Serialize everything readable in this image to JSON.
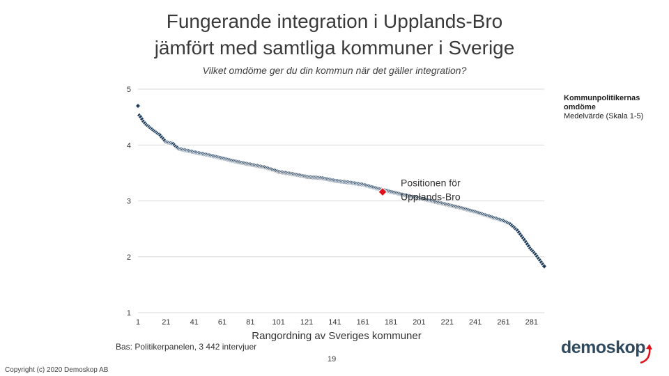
{
  "header": {
    "title_line1": "Fungerande integration i Upplands-Bro",
    "title_line2": "jämfört med samtliga kommuner i Sverige",
    "subtitle": "Vilket omdöme ger du din kommun när det gäller integration?"
  },
  "legend": {
    "label": "Kommunpolitikernas omdöme",
    "sublabel": "Medelvärde (Skala 1-5)"
  },
  "footer": {
    "bas": "Bas: Politikerpanelen, 3 442 intervjuer",
    "page_number": "19",
    "copyright": "Copyright (c) 2020 Demoskop AB",
    "logo": "demoskop"
  },
  "colors": {
    "series": "#1f3d5a",
    "highlight": "#e0101a",
    "grid": "#d9d9d9"
  },
  "chart_data": {
    "type": "scatter",
    "xlabel": "Rangordning av Sveriges kommuner",
    "ylabel": "",
    "xlim": [
      1,
      290
    ],
    "ylim": [
      1,
      5
    ],
    "xticks": [
      1,
      21,
      41,
      61,
      81,
      101,
      121,
      141,
      161,
      181,
      201,
      221,
      241,
      261,
      281
    ],
    "yticks": [
      1,
      2,
      3,
      4,
      5
    ],
    "ytick_labels": [
      "1",
      "2",
      "3",
      "4",
      "5"
    ],
    "series": [
      {
        "name": "Kommunpolitikernas omdöme",
        "rank_range": [
          1,
          290
        ],
        "anchors": [
          [
            1,
            4.7
          ],
          [
            2,
            4.53
          ],
          [
            3,
            4.5
          ],
          [
            5,
            4.42
          ],
          [
            7,
            4.36
          ],
          [
            10,
            4.3
          ],
          [
            13,
            4.24
          ],
          [
            17,
            4.17
          ],
          [
            21,
            4.05
          ],
          [
            26,
            4.02
          ],
          [
            30,
            3.93
          ],
          [
            41,
            3.87
          ],
          [
            51,
            3.82
          ],
          [
            61,
            3.76
          ],
          [
            71,
            3.7
          ],
          [
            81,
            3.65
          ],
          [
            91,
            3.6
          ],
          [
            101,
            3.52
          ],
          [
            111,
            3.48
          ],
          [
            121,
            3.43
          ],
          [
            131,
            3.41
          ],
          [
            141,
            3.36
          ],
          [
            151,
            3.33
          ],
          [
            161,
            3.29
          ],
          [
            171,
            3.22
          ],
          [
            181,
            3.16
          ],
          [
            191,
            3.1
          ],
          [
            201,
            3.05
          ],
          [
            211,
            2.99
          ],
          [
            221,
            2.93
          ],
          [
            231,
            2.87
          ],
          [
            241,
            2.8
          ],
          [
            251,
            2.72
          ],
          [
            261,
            2.64
          ],
          [
            266,
            2.58
          ],
          [
            271,
            2.47
          ],
          [
            276,
            2.3
          ],
          [
            280,
            2.15
          ],
          [
            284,
            2.04
          ],
          [
            286,
            1.97
          ],
          [
            288,
            1.9
          ],
          [
            290,
            1.83
          ]
        ]
      }
    ],
    "highlight": {
      "label": "Positionen för Upplands-Bro",
      "rank": 175,
      "value": 3.16
    }
  }
}
